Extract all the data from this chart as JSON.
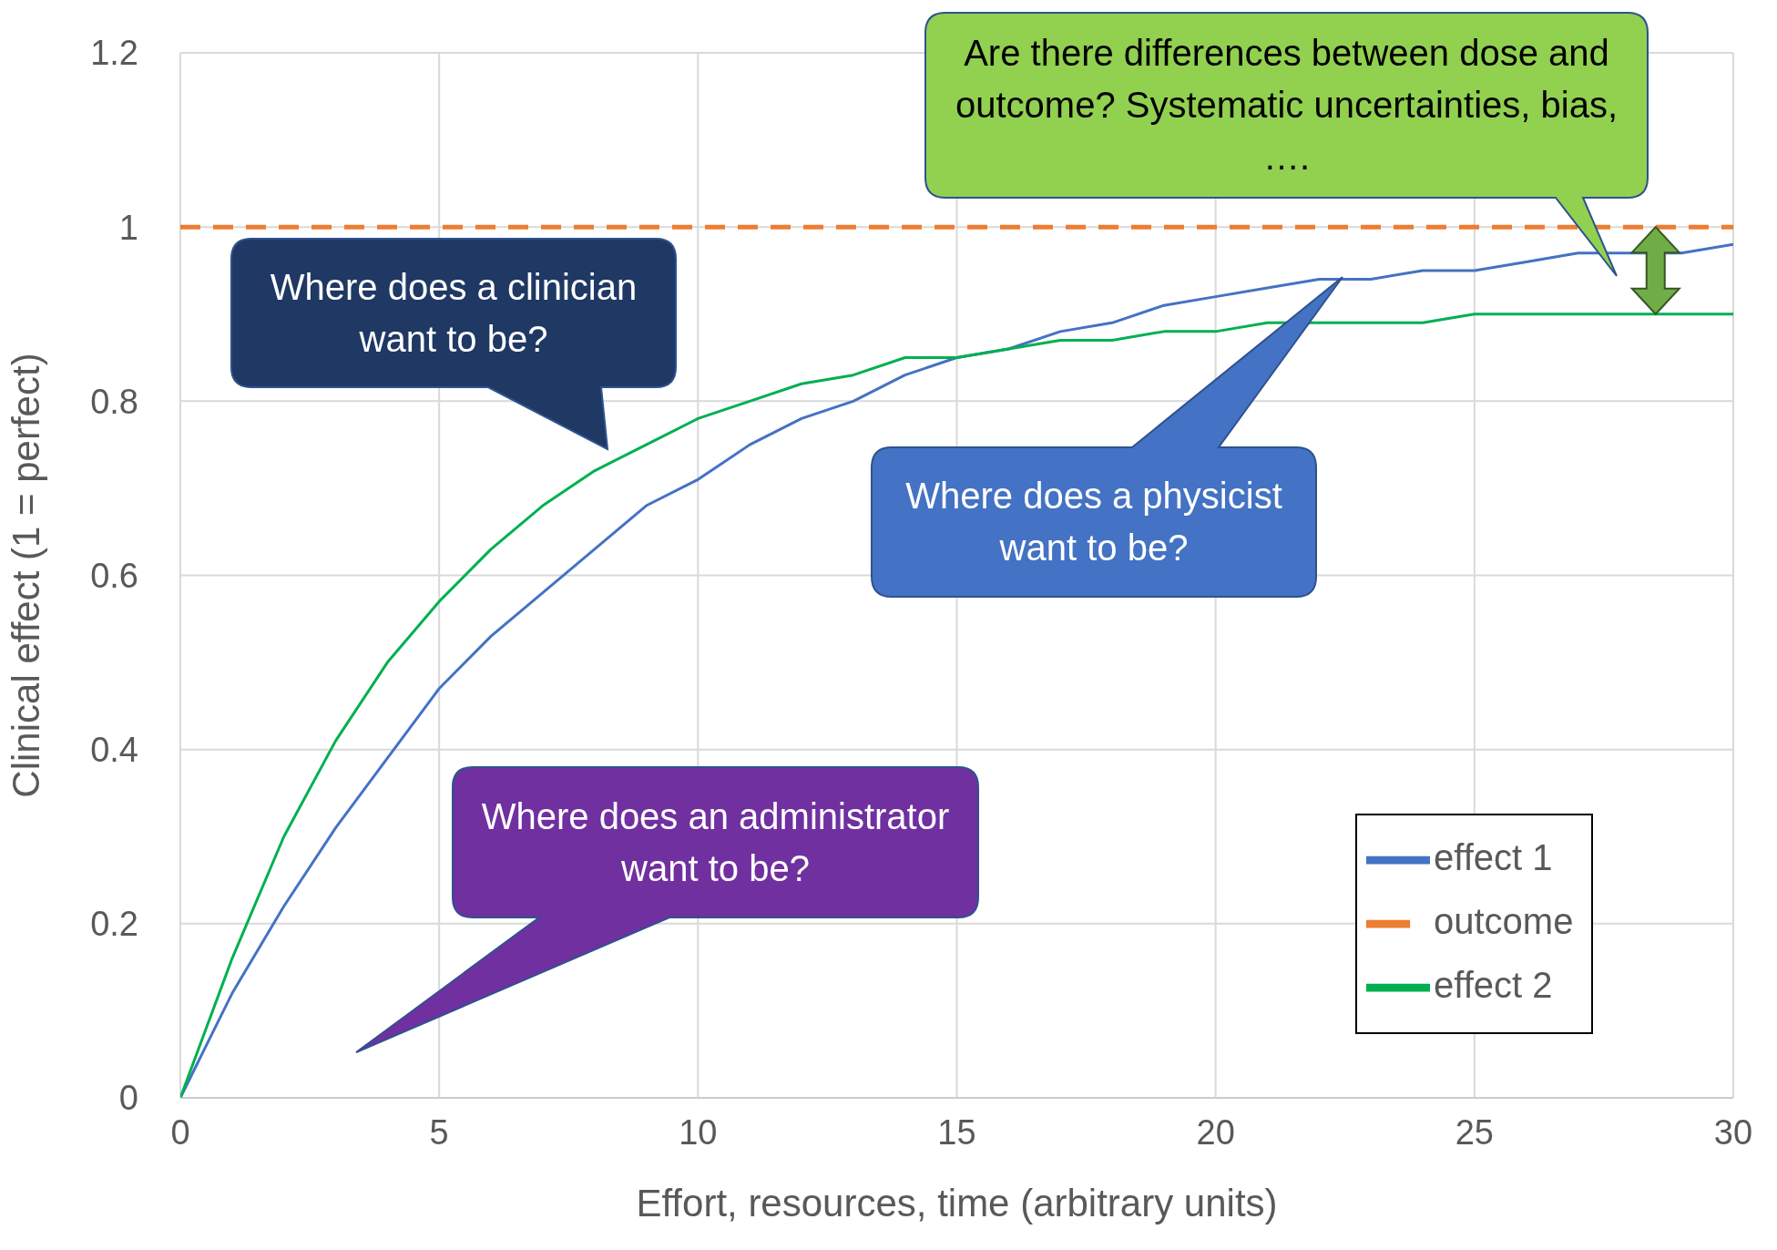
{
  "chart_data": {
    "type": "line",
    "xlabel": "Effort, resources, time (arbitrary units)",
    "ylabel": "Clinical effect (1 = perfect)",
    "x": [
      0,
      1,
      2,
      3,
      4,
      5,
      6,
      7,
      8,
      9,
      10,
      11,
      12,
      13,
      14,
      15,
      16,
      17,
      18,
      19,
      20,
      21,
      22,
      23,
      24,
      25,
      26,
      27,
      28,
      29,
      30
    ],
    "series": [
      {
        "name": "effect 1",
        "color": "#4472c4",
        "values": [
          0,
          0.12,
          0.22,
          0.31,
          0.39,
          0.47,
          0.53,
          0.58,
          0.63,
          0.68,
          0.71,
          0.75,
          0.78,
          0.8,
          0.83,
          0.85,
          0.86,
          0.88,
          0.89,
          0.91,
          0.92,
          0.93,
          0.94,
          0.94,
          0.95,
          0.95,
          0.96,
          0.97,
          0.97,
          0.97,
          0.98
        ]
      },
      {
        "name": "outcome",
        "color": "#ed7d31",
        "line_style": "dashed",
        "values": [
          1,
          1,
          1,
          1,
          1,
          1,
          1,
          1,
          1,
          1,
          1,
          1,
          1,
          1,
          1,
          1,
          1,
          1,
          1,
          1,
          1,
          1,
          1,
          1,
          1,
          1,
          1,
          1,
          1,
          1,
          1
        ]
      },
      {
        "name": "effect 2",
        "color": "#00b050",
        "values": [
          0,
          0.16,
          0.3,
          0.41,
          0.5,
          0.57,
          0.63,
          0.68,
          0.72,
          0.75,
          0.78,
          0.8,
          0.82,
          0.83,
          0.85,
          0.85,
          0.86,
          0.87,
          0.87,
          0.88,
          0.88,
          0.89,
          0.89,
          0.89,
          0.89,
          0.9,
          0.9,
          0.9,
          0.9,
          0.9,
          0.9
        ]
      }
    ],
    "xlim": [
      0,
      30
    ],
    "xticks": [
      0,
      5,
      10,
      15,
      20,
      25,
      30
    ],
    "ylim": [
      0,
      1.2
    ],
    "yticks": [
      0,
      0.2,
      0.4,
      0.6,
      0.8,
      1,
      1.2
    ],
    "grid": true,
    "legend": "bottom right",
    "marker": "none",
    "line_style": "solid",
    "annotations": [
      "Are there differences between dose and outcome? Systematic uncertainties, bias, ….",
      "Where does a clinician want to be?",
      "Where does a physicist want to be?",
      "Where does an administrator want to be?"
    ]
  }
}
